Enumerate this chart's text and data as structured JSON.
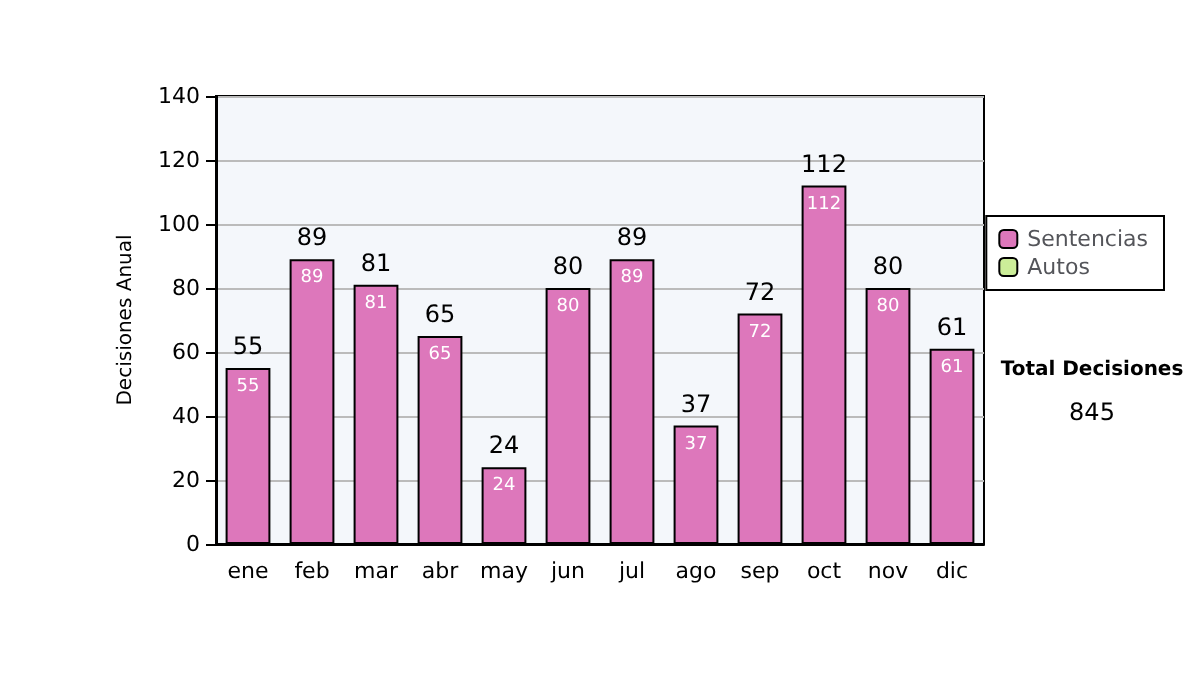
{
  "chart_data": {
    "type": "bar",
    "ylabel": "Decisiones Anual",
    "categories": [
      "ene",
      "feb",
      "mar",
      "abr",
      "may",
      "jun",
      "jul",
      "ago",
      "sep",
      "oct",
      "nov",
      "dic"
    ],
    "series": [
      {
        "name": "Sentencias",
        "color": "#dd77bb",
        "values": [
          55,
          89,
          81,
          65,
          24,
          80,
          89,
          37,
          72,
          112,
          80,
          61
        ],
        "value_labels": [
          "55",
          "89",
          "81",
          "65",
          "24",
          "80",
          "89",
          "37",
          "72",
          "112",
          "80",
          "61"
        ]
      },
      {
        "name": "Autos",
        "color": "#ccee99",
        "values": [
          0,
          0,
          0,
          0,
          0,
          0,
          0,
          0,
          0,
          0,
          0,
          0
        ]
      }
    ],
    "stacked": true,
    "totals": [
      "55",
      "89",
      "81",
      "65",
      "24",
      "80",
      "89",
      "37",
      "72",
      "112",
      "80",
      "61"
    ],
    "ylim": [
      0,
      140
    ],
    "yticks": [
      0,
      20,
      40,
      60,
      80,
      100,
      120,
      140
    ],
    "grid": "y",
    "legend": "right",
    "annotations": [
      "Total Decisiones",
      "845"
    ]
  }
}
